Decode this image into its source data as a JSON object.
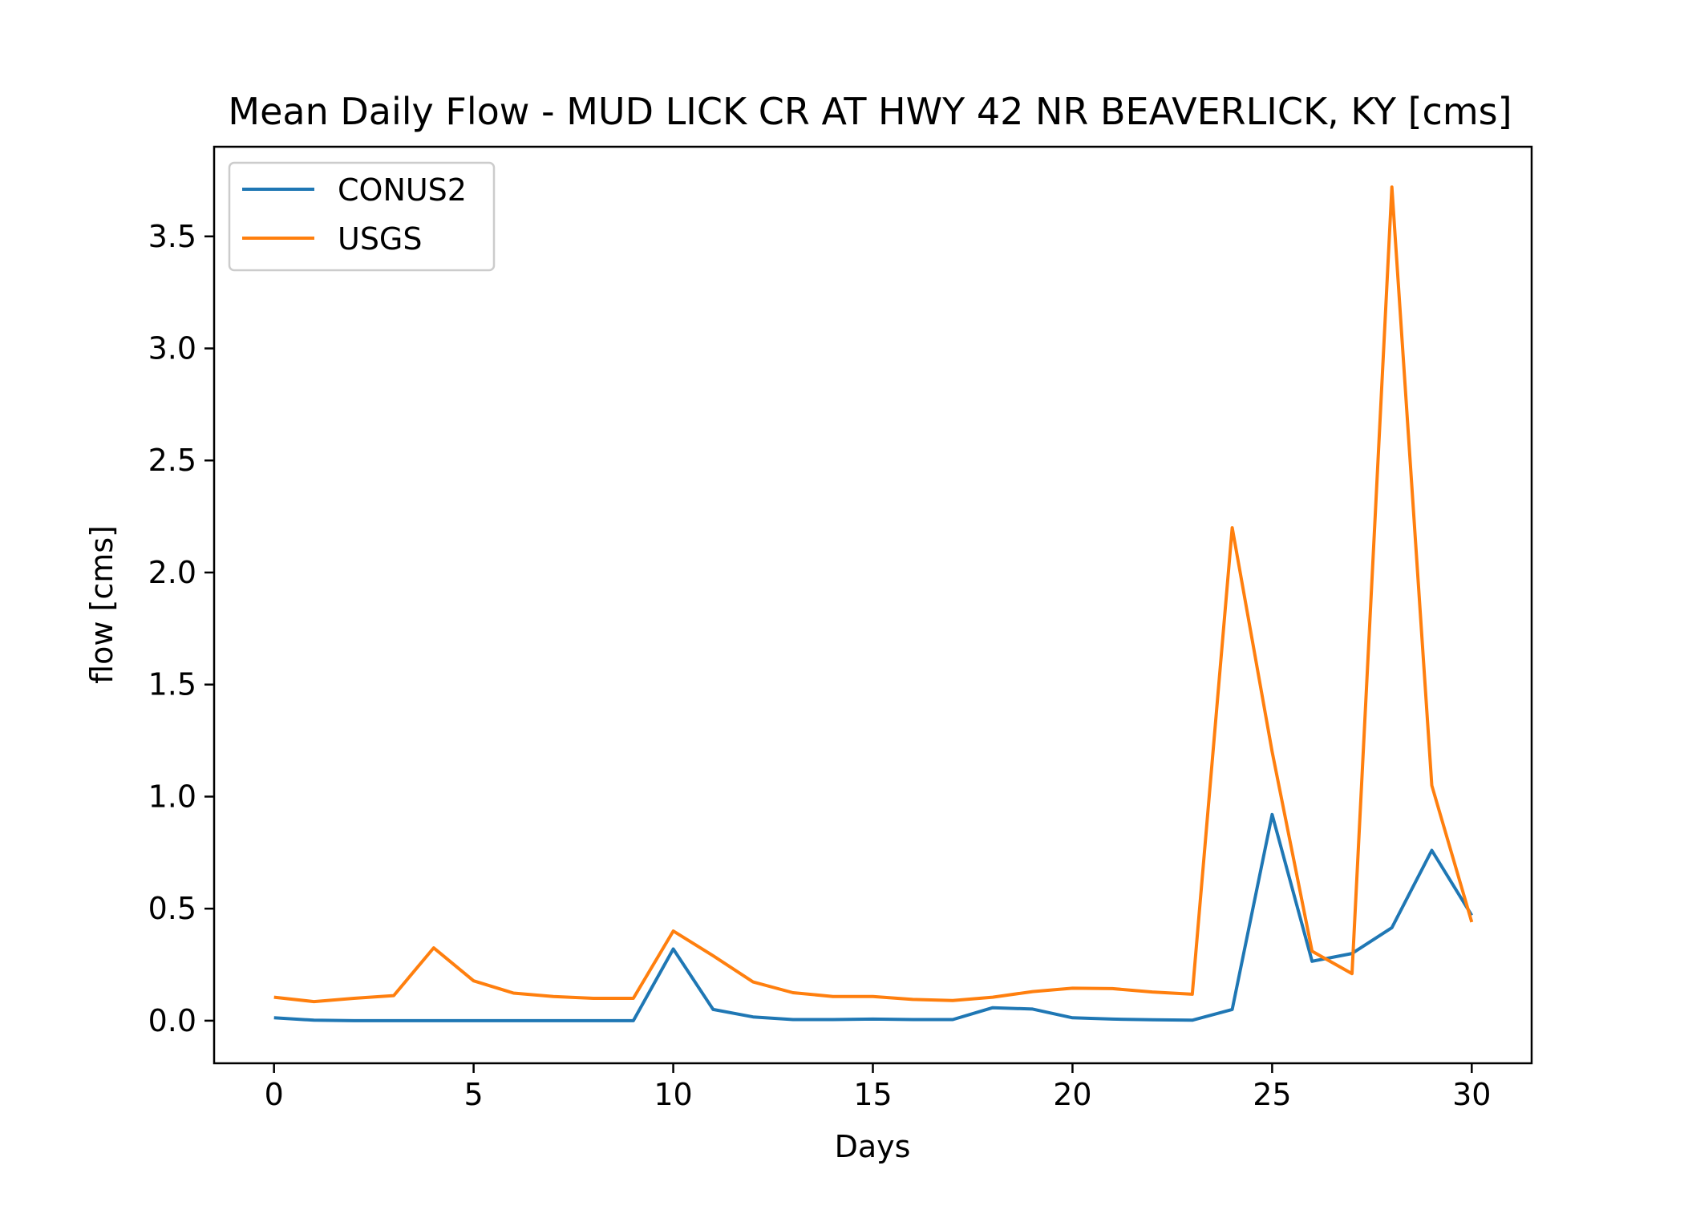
{
  "chart_data": {
    "type": "line",
    "title": "Mean Daily Flow - MUD LICK CR AT HWY 42 NR BEAVERLICK, KY [cms]",
    "xlabel": "Days",
    "ylabel": "flow [cms]",
    "xlim": [
      -1.5,
      31.5
    ],
    "ylim": [
      -0.19,
      3.9
    ],
    "xticks": [
      0,
      5,
      10,
      15,
      20,
      25,
      30
    ],
    "xtick_labels": [
      "0",
      "5",
      "10",
      "15",
      "20",
      "25",
      "30"
    ],
    "yticks": [
      0.0,
      0.5,
      1.0,
      1.5,
      2.0,
      2.5,
      3.0,
      3.5
    ],
    "ytick_labels": [
      "0.0",
      "0.5",
      "1.0",
      "1.5",
      "2.0",
      "2.5",
      "3.0",
      "3.5"
    ],
    "grid": false,
    "legend_position": "top-left",
    "x": [
      0,
      1,
      2,
      3,
      4,
      5,
      6,
      7,
      8,
      9,
      10,
      11,
      12,
      13,
      14,
      15,
      16,
      17,
      18,
      19,
      20,
      21,
      22,
      23,
      24,
      25,
      26,
      27,
      28,
      29,
      30
    ],
    "series": [
      {
        "name": "CONUS2",
        "color": "#1f77b4",
        "values": [
          0.013,
          0.002,
          0.0,
          0.0,
          0.0,
          0.0,
          0.0,
          0.0,
          0.0,
          0.0,
          0.32,
          0.05,
          0.017,
          0.005,
          0.005,
          0.007,
          0.005,
          0.005,
          0.058,
          0.052,
          0.013,
          0.007,
          0.004,
          0.002,
          0.05,
          0.92,
          0.265,
          0.3,
          0.415,
          0.76,
          0.47
        ]
      },
      {
        "name": "USGS",
        "color": "#ff7f0e",
        "values": [
          0.105,
          0.085,
          0.1,
          0.112,
          0.325,
          0.178,
          0.123,
          0.108,
          0.1,
          0.1,
          0.4,
          0.29,
          0.173,
          0.125,
          0.108,
          0.108,
          0.095,
          0.09,
          0.105,
          0.13,
          0.145,
          0.143,
          0.128,
          0.118,
          2.2,
          1.2,
          0.31,
          0.21,
          3.72,
          1.05,
          0.44
        ]
      }
    ]
  }
}
